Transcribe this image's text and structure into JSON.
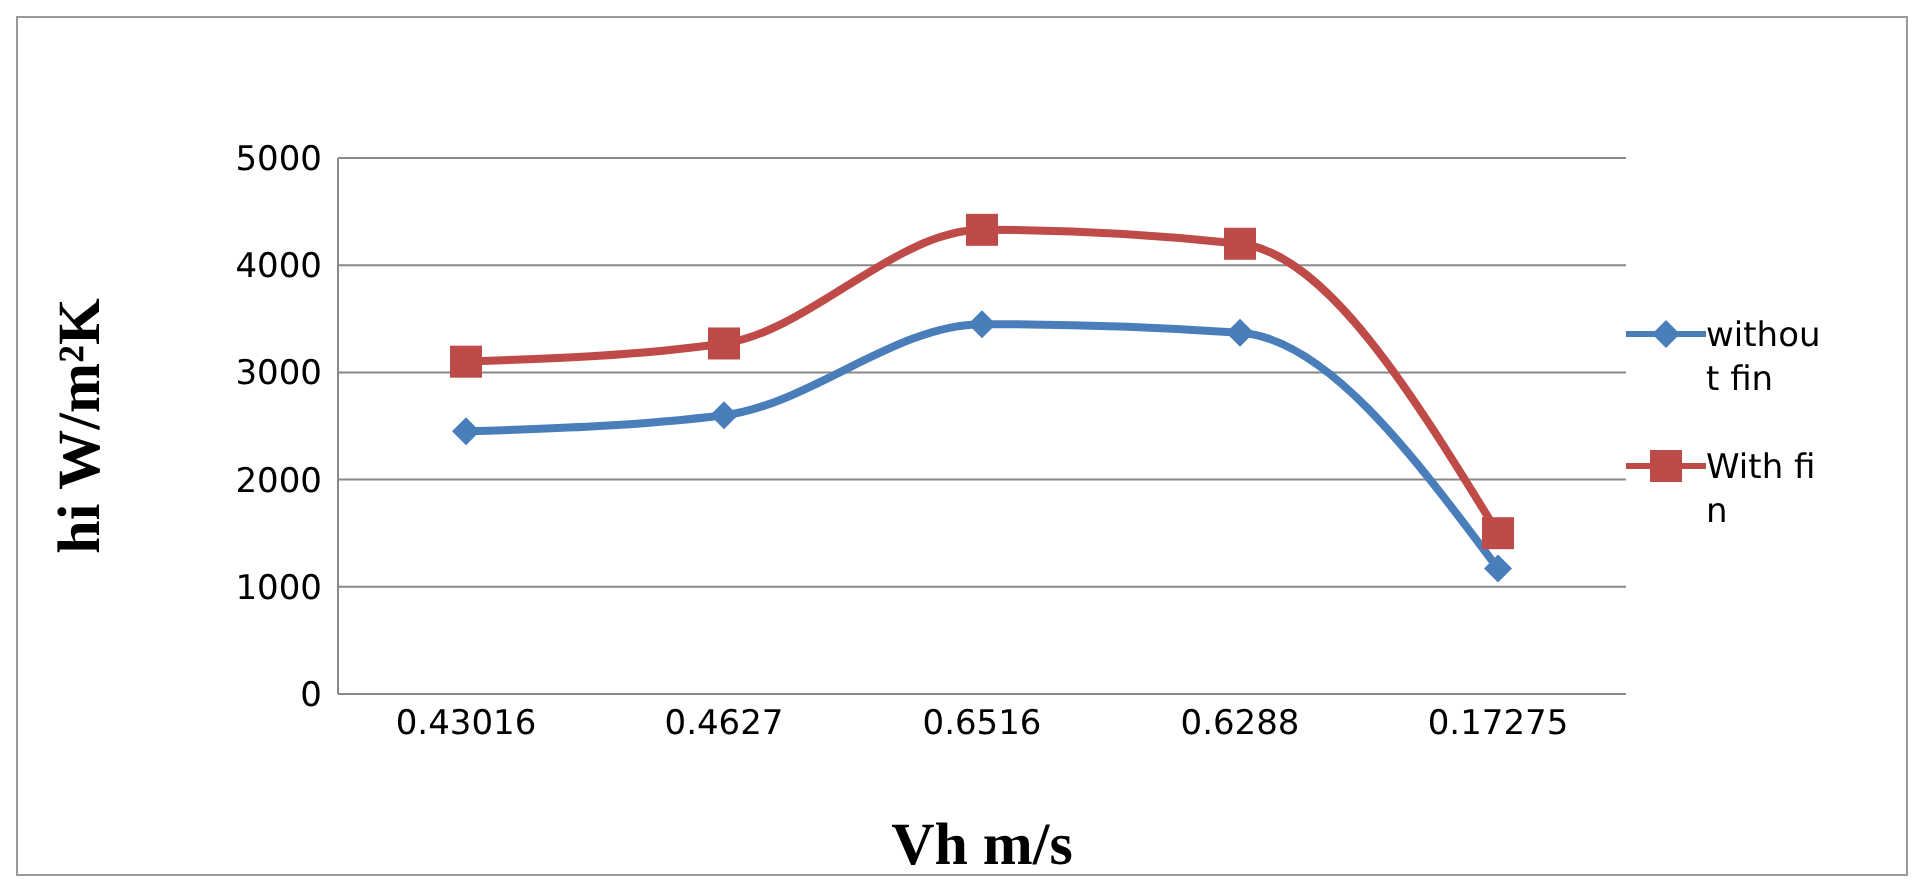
{
  "chart_data": {
    "type": "line",
    "xlabel": "Vh m/s",
    "ylabel": "hi W/m²K",
    "categories": [
      "0.43016",
      "0.4627",
      "0.6516",
      "0.6288",
      "0.17275"
    ],
    "series": [
      {
        "name": "without fin",
        "color": "#4a7ebb",
        "marker": "diamond",
        "values": [
          2450,
          2600,
          3450,
          3370,
          1170
        ]
      },
      {
        "name": "With fin",
        "color": "#be4b48",
        "marker": "square",
        "values": [
          3100,
          3270,
          4330,
          4200,
          1500
        ]
      }
    ],
    "ylim": [
      0,
      5000
    ],
    "yticks": [
      0,
      1000,
      2000,
      3000,
      4000,
      5000
    ],
    "grid": "y",
    "legend": "right",
    "line_style": "solid"
  }
}
